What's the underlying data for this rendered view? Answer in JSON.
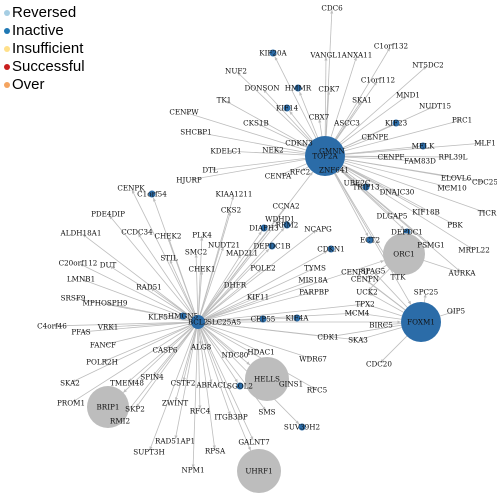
{
  "legend": [
    {
      "label": "Reversed",
      "color": "#a6cee3"
    },
    {
      "label": "Inactive",
      "color": "#1f78b4"
    },
    {
      "label": "Insufficient",
      "color": "#ffe08a"
    },
    {
      "label": "Successful",
      "color": "#c81e1e"
    },
    {
      "label": "Over",
      "color": "#f4a460"
    }
  ],
  "colors": {
    "inactive": "#2b6ca8",
    "none": "#bdbdbd",
    "edge": "#bdbdbd"
  },
  "hubs": [
    {
      "id": "top2a",
      "label": "TOP2A",
      "status": "inactive"
    },
    {
      "id": "bcl2",
      "label": "BCL2",
      "status": "inactive"
    },
    {
      "id": "foxm1",
      "label": "FOXM1",
      "status": "inactive"
    },
    {
      "id": "orc1",
      "label": "ORC1",
      "status": "none"
    },
    {
      "id": "brip1",
      "label": "BRIP1",
      "status": "none"
    },
    {
      "id": "hells",
      "label": "HELLS",
      "status": "none"
    },
    {
      "id": "uhrf1",
      "label": "UHRF1",
      "status": "none"
    }
  ],
  "genes": [
    "CDC6",
    "KIF20A",
    "VANGL1",
    "ANXA11",
    "C1orf132",
    "NUF2",
    "HMMR",
    "CDK7",
    "C1orf112",
    "NT5DC2",
    "DONSON",
    "SKA1",
    "MND1",
    "TK1",
    "CKS1B",
    "KIF14",
    "NUDT15",
    "CENPW",
    "CBX7",
    "ASCC3",
    "KIF23",
    "PRC1",
    "SHCBP1",
    "MELK",
    "MLF1",
    "CDKN3",
    "RPL39L",
    "NEK2",
    "CENPE",
    "KDELC1",
    "CENPF",
    "FAM83D",
    "ELOVL6",
    "CDC25",
    "DTL",
    "GMNN",
    "CENPA",
    "RFC2",
    "MCM10",
    "HJURP",
    "TRIP13",
    "DNAJC30",
    "ZNF641",
    "CENPK",
    "UBE2C",
    "KIF18B",
    "TICR",
    "C1orf54",
    "DLGAP5",
    "PBK",
    "KIAA1211",
    "CKS2",
    "DEPDC1",
    "CCNA2",
    "PSMG1",
    "MRPL22",
    "PDE4DIP",
    "WDHD1",
    "ECT2",
    "RRM2",
    "AURKA",
    "DIAPH3",
    "CCDC34",
    "CHEK2",
    "NCAPG",
    "TTK",
    "ALDH18A1",
    "PLK4",
    "DEPDC1B",
    "CENPN",
    "NUDT21",
    "MAD2L1",
    "CDKN1",
    "SMC2",
    "CENPU",
    "C20orf112",
    "POLE2",
    "SPC25",
    "DUT",
    "STIL",
    "UCK2",
    "BIRC5",
    "OIP5",
    "DHFR",
    "LMNB1",
    "CHEK1",
    "TYMS",
    "SPAG5",
    "MIS18A",
    "RAD51",
    "KIF11",
    "SRSF9",
    "PARPBP",
    "TPX2",
    "MCM4",
    "MPHOSPH9",
    "CEP55",
    "KIF4A",
    "KLF5",
    "HMGN5",
    "SLC25A5",
    "C4orf46",
    "CDK1",
    "SKA3",
    "PFAS",
    "VRK1",
    "CDC20",
    "FANCF",
    "ALG8",
    "CASP6",
    "NDC80",
    "HDAC1",
    "WDR67",
    "POLR2H",
    "SPIN4",
    "TMEM48",
    "GINS1",
    "RFC5",
    "SKA2",
    "CSTF2",
    "ABRACL",
    "SGOL2",
    "PROM1",
    "SKP2",
    "ZWINT",
    "SMS",
    "RFC4",
    "ITGB3BP",
    "RMI2",
    "SUV39H2",
    "RAD51AP1",
    "SUPT3H",
    "RPSA",
    "GALNT7",
    "NPM1"
  ]
}
